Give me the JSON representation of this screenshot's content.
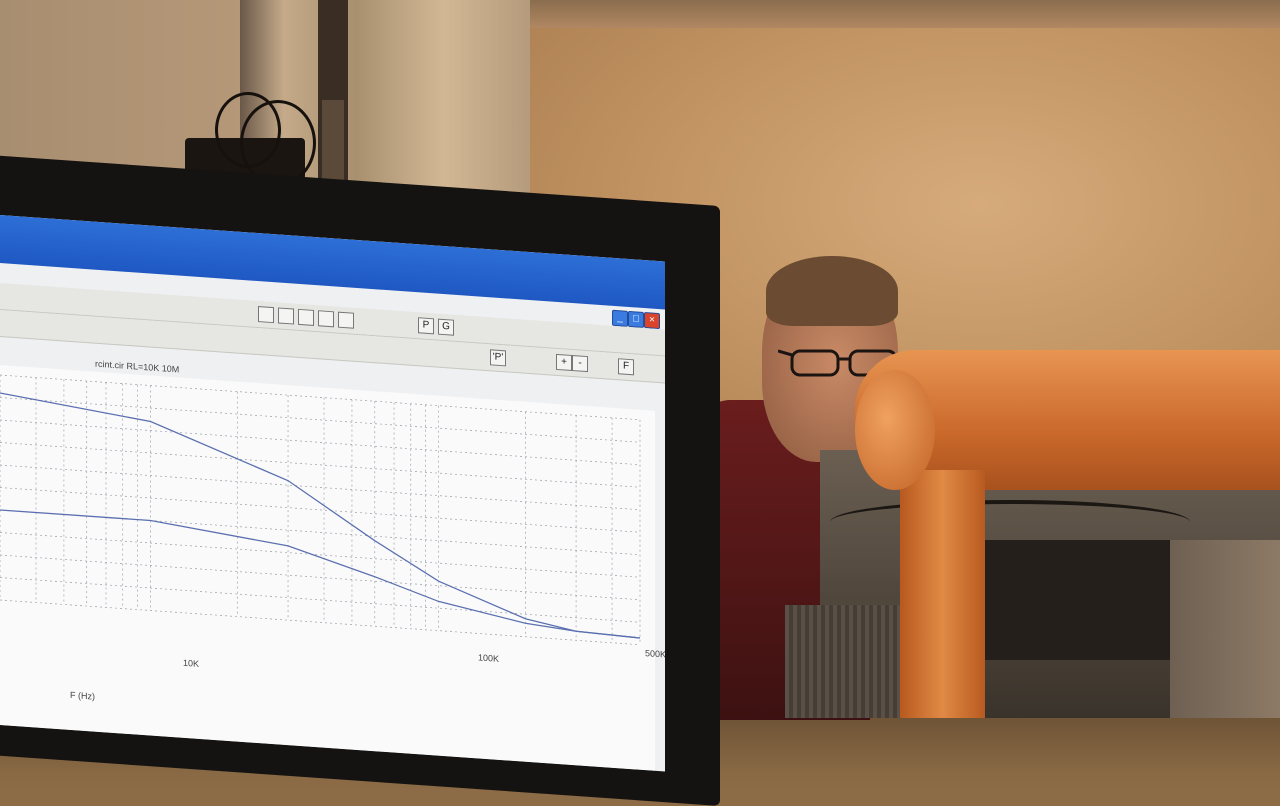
{
  "screen": {
    "plot_title": "rcint.cir RL=10K  10M",
    "tick_labels": {
      "x_10k": "10K",
      "x_100k": "100K",
      "x_500k": "500K",
      "x_axis": "F (Hz)"
    },
    "toolbar_letters": {
      "p": "P",
      "g": "G",
      "p2": "'P'",
      "f": "F"
    }
  },
  "chart_data": {
    "type": "line",
    "title": "rcint.cir RL=10K  10M",
    "xlabel": "F (Hz)",
    "ylabel": "",
    "x_scale": "log",
    "x": [
      3000,
      10000,
      30000,
      60000,
      100000,
      200000,
      300000,
      500000
    ],
    "series": [
      {
        "values": [
          0.92,
          0.84,
          0.62,
          0.38,
          0.22,
          0.08,
          0.04,
          0.03
        ]
      },
      {
        "values": [
          0.4,
          0.4,
          0.33,
          0.22,
          0.13,
          0.06,
          0.04,
          0.03
        ]
      }
    ],
    "grid": true,
    "colors": {
      "line": "#5a6fb0",
      "grid": "#9aa0aa"
    }
  }
}
